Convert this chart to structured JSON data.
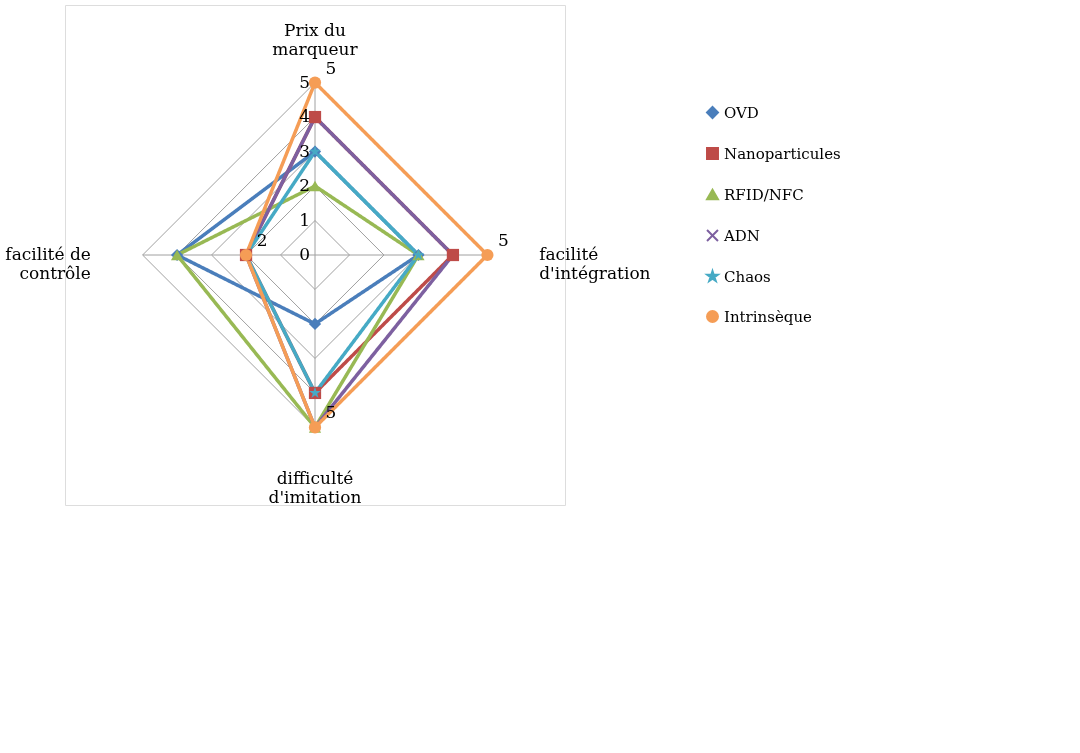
{
  "chart_data": {
    "type": "radar",
    "categories": [
      "Prix du marqueur",
      "facilité d'intégration",
      "difficulté d'imitation",
      "facilité de contrôle"
    ],
    "ylim": [
      0,
      5
    ],
    "yticks": [
      0,
      1,
      2,
      3,
      4,
      5
    ],
    "grid": true,
    "legend": "right",
    "line_style": "solid",
    "series": [
      {
        "name": "OVD",
        "color": "#4a7ebb",
        "marker": "diamond",
        "values": [
          3,
          3,
          2,
          4
        ]
      },
      {
        "name": "Nanoparticules",
        "color": "#be4b48",
        "marker": "square",
        "values": [
          4,
          4,
          4,
          2
        ]
      },
      {
        "name": "RFID/NFC",
        "color": "#98b954",
        "marker": "triangle",
        "values": [
          2,
          3,
          5,
          4
        ]
      },
      {
        "name": "ADN",
        "color": "#7d60a0",
        "marker": "cross",
        "values": [
          4,
          4,
          5,
          2
        ]
      },
      {
        "name": "Chaos",
        "color": "#46aac5",
        "marker": "star",
        "values": [
          3,
          3,
          4,
          2
        ]
      },
      {
        "name": "Intrinsèque",
        "color": "#f59d56",
        "marker": "circle",
        "values": [
          5,
          5,
          5,
          2
        ],
        "value_labels": [
          "5",
          "5",
          "5",
          "2"
        ]
      }
    ]
  }
}
